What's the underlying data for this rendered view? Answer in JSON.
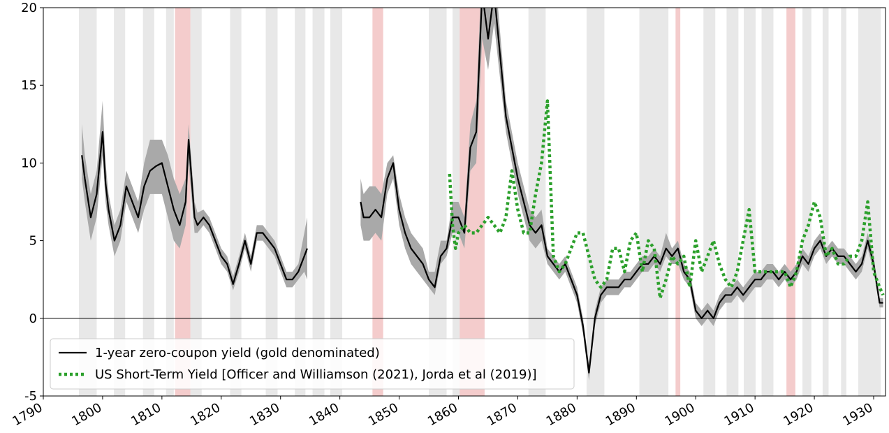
{
  "chart_data": {
    "type": "line",
    "xlim": [
      1790,
      1932
    ],
    "xticks": [
      1790,
      1800,
      1810,
      1820,
      1830,
      1840,
      1850,
      1860,
      1870,
      1880,
      1890,
      1900,
      1910,
      1920,
      1930
    ],
    "ylim": [
      -5,
      20
    ],
    "yticks": [
      -5,
      0,
      5,
      10,
      15,
      20
    ],
    "zero_line": true,
    "legend": "lower left",
    "band_color": "#a9a9a9",
    "recession_color": "#e8e8e8",
    "war_color": "#f4cccc",
    "recession_spans": [
      [
        1796,
        1799
      ],
      [
        1801.9,
        1803.8
      ],
      [
        1806.8,
        1808.7
      ],
      [
        1810.7,
        1812
      ],
      [
        1814.8,
        1816.7
      ],
      [
        1821.5,
        1823.4
      ],
      [
        1827.5,
        1829.5
      ],
      [
        1832.4,
        1834.2
      ],
      [
        1835.4,
        1837.4
      ],
      [
        1838.4,
        1840.4
      ],
      [
        1855,
        1858
      ],
      [
        1859,
        1860.4
      ],
      [
        1863.3,
        1864.4
      ],
      [
        1871.8,
        1874.7
      ],
      [
        1881.6,
        1884.6
      ],
      [
        1890.5,
        1895.4
      ],
      [
        1901.3,
        1903.3
      ],
      [
        1905.2,
        1907.2
      ],
      [
        1908.1,
        1910.1
      ],
      [
        1911.1,
        1913.1
      ],
      [
        1918,
        1919.5
      ],
      [
        1921.4,
        1922.4
      ],
      [
        1924.5,
        1925.4
      ],
      [
        1927.4,
        1931.2
      ]
    ],
    "war_spans": [
      [
        1812.2,
        1814.8
      ],
      [
        1845.5,
        1847.3
      ],
      [
        1860.2,
        1864.4
      ],
      [
        1896.6,
        1897.4
      ],
      [
        1915.3,
        1916.8
      ]
    ],
    "series": [
      {
        "name": "1-year zero-coupon yield (gold denominated)",
        "color": "#000000",
        "style": "solid",
        "x": [
          1796.5,
          1797,
          1798,
          1799,
          1800,
          1800.5,
          1801,
          1802,
          1803,
          1804,
          1805,
          1806,
          1807,
          1808,
          1809,
          1810,
          1811,
          1812,
          1813,
          1814,
          1814.5,
          1815.5,
          1816,
          1817,
          1818,
          1819,
          1820,
          1821,
          1822,
          1823,
          1824,
          1825,
          1826,
          1827,
          1828,
          1829,
          1830,
          1831,
          1832,
          1833,
          1834,
          1834.5,
          1839,
          1843.5,
          1844,
          1845,
          1846,
          1847,
          1848,
          1849,
          1850,
          1851,
          1852,
          1853,
          1854,
          1855,
          1856,
          1857,
          1858,
          1859,
          1860,
          1861,
          1862,
          1863,
          1864,
          1865,
          1866,
          1867,
          1868,
          1869,
          1870,
          1871,
          1872,
          1873,
          1874,
          1875,
          1876,
          1877,
          1878,
          1879,
          1880,
          1881,
          1882,
          1883,
          1884,
          1885,
          1886,
          1887,
          1888,
          1889,
          1890,
          1891,
          1892,
          1893,
          1894,
          1895,
          1896,
          1897,
          1898,
          1899,
          1900,
          1901,
          1902,
          1903,
          1904,
          1905,
          1906,
          1907,
          1908,
          1909,
          1910,
          1911,
          1912,
          1913,
          1914,
          1915,
          1916,
          1917,
          1918,
          1919,
          1920,
          1921,
          1922,
          1923,
          1924,
          1925,
          1926,
          1927,
          1928,
          1929,
          1930,
          1931,
          1931.6
        ],
        "values": [
          10.5,
          9,
          6.5,
          8,
          12,
          8.7,
          7,
          5,
          6,
          8.5,
          7.5,
          6.5,
          8.5,
          9.5,
          9.8,
          10,
          8.5,
          7,
          6,
          7.5,
          11.5,
          6.5,
          6,
          6.5,
          6,
          5,
          4,
          3.5,
          2.2,
          3.5,
          5,
          3.5,
          5.5,
          5.5,
          5,
          4.5,
          3.5,
          2.5,
          2.5,
          3,
          4,
          4.5,
          null,
          7.5,
          6.5,
          6.5,
          7,
          6.5,
          9,
          10,
          7,
          5.5,
          4.5,
          4,
          3.5,
          2.5,
          2,
          4,
          4.5,
          6.5,
          6.5,
          5.5,
          11,
          12,
          21,
          18,
          21,
          17,
          13,
          11,
          9,
          7.5,
          6,
          5.5,
          6,
          4,
          3.5,
          3,
          3.5,
          2.5,
          1.5,
          -0.5,
          -3.5,
          0,
          1.5,
          2,
          2,
          2,
          2.5,
          2.5,
          3,
          3.5,
          3.5,
          4,
          3.5,
          4.5,
          4,
          4.5,
          3,
          2.5,
          0.5,
          0,
          0.5,
          0,
          1,
          1.5,
          1.5,
          2,
          1.5,
          2,
          2.5,
          2.5,
          3,
          3,
          2.5,
          3,
          2.5,
          3,
          4,
          3.5,
          4.5,
          5,
          4,
          4.5,
          4,
          4,
          3.5,
          3,
          3.5,
          5,
          3.5,
          1,
          1
        ],
        "lower": [
          9,
          7.5,
          5,
          6.5,
          10.5,
          7.5,
          6,
          4,
          5,
          7.5,
          6.5,
          5.5,
          7,
          8,
          8,
          8,
          6.5,
          5,
          4.5,
          6,
          10,
          5.5,
          5.5,
          6,
          5.5,
          4.5,
          3.5,
          3,
          1.8,
          3,
          4.5,
          3,
          5,
          5,
          4.5,
          4,
          3,
          2,
          2,
          2.5,
          3,
          2.5,
          null,
          6,
          5,
          5,
          5.5,
          5,
          8,
          9,
          6,
          4.5,
          3.5,
          3,
          2.5,
          2,
          1.5,
          3.5,
          4,
          5.5,
          5.5,
          4.5,
          9.5,
          10,
          18,
          16,
          19,
          15.5,
          12,
          10,
          8,
          6.5,
          5,
          4.5,
          5,
          3.5,
          3,
          2.5,
          3,
          2,
          1,
          -1,
          -4,
          -0.5,
          1,
          1.5,
          1.5,
          1.5,
          2,
          2,
          2.5,
          3,
          3,
          3.5,
          3,
          4,
          3.5,
          3.5,
          2.5,
          2,
          0,
          -0.5,
          0,
          -0.5,
          0.5,
          1,
          1,
          1.5,
          1,
          1.5,
          2,
          2,
          2.5,
          2.5,
          2,
          2.5,
          2,
          2.5,
          3.5,
          3,
          4,
          4.5,
          3.5,
          4,
          3.5,
          3.5,
          3,
          2.5,
          3,
          4.5,
          3,
          0.7,
          0.7
        ],
        "upper": [
          12.5,
          10.5,
          8,
          9.5,
          14,
          10,
          8,
          6,
          7,
          9.5,
          8.5,
          7.5,
          10,
          11.5,
          11.5,
          11.5,
          10.5,
          9,
          8,
          9,
          12.5,
          7.5,
          6.8,
          7,
          6.5,
          5.5,
          4.5,
          4,
          2.7,
          4,
          5.5,
          4,
          6,
          6,
          5.5,
          5,
          4,
          3,
          3,
          3.5,
          5.5,
          6.5,
          null,
          9,
          8,
          8.5,
          8.5,
          8,
          10,
          10.5,
          8,
          6.5,
          5.5,
          5,
          4.5,
          3,
          3,
          5,
          5,
          7.5,
          7.5,
          6.5,
          12.5,
          14,
          23,
          20.5,
          23,
          18.5,
          14,
          12,
          10,
          8.5,
          7,
          6.5,
          7,
          4.5,
          4,
          3.5,
          4,
          3,
          2,
          0,
          -3,
          0.5,
          2,
          2.5,
          2.5,
          2.5,
          3,
          3,
          3.5,
          4,
          4,
          4.5,
          4,
          5.5,
          4.5,
          5,
          3.5,
          3,
          1,
          0.5,
          1,
          0.5,
          1.5,
          2,
          2,
          2.5,
          2,
          2.5,
          3,
          3,
          3.5,
          3.5,
          3,
          3.5,
          3,
          3.5,
          4.5,
          4,
          5,
          5.5,
          4.5,
          5,
          4.5,
          4.5,
          4,
          3.5,
          4,
          5.5,
          4,
          1.3,
          1.3
        ]
      },
      {
        "name": "US Short-Term Yield [Officer and Williamson (2021), Jorda et al (2019)]",
        "color": "#2ca02c",
        "style": "dotted",
        "x": [
          1858.5,
          1859,
          1859.5,
          1860,
          1861,
          1862,
          1863,
          1864,
          1865,
          1866,
          1867,
          1868,
          1869,
          1870,
          1871,
          1872,
          1873,
          1874,
          1875,
          1876,
          1877,
          1878,
          1879,
          1880,
          1881,
          1882,
          1883,
          1884,
          1885,
          1886,
          1887,
          1888,
          1889,
          1890,
          1891,
          1892,
          1893,
          1894,
          1895,
          1896,
          1897,
          1898,
          1899,
          1900,
          1901,
          1902,
          1903,
          1904,
          1905,
          1906,
          1907,
          1908,
          1909,
          1910,
          1911,
          1912,
          1913,
          1914,
          1915,
          1916,
          1917,
          1918,
          1919,
          1920,
          1921,
          1922,
          1923,
          1924,
          1925,
          1926,
          1927,
          1928,
          1929,
          1930,
          1931,
          1931.6
        ],
        "values": [
          9.3,
          6,
          4.5,
          5.5,
          6,
          5.5,
          5.5,
          6,
          6.5,
          6,
          5.5,
          6.5,
          9.5,
          7,
          5.5,
          5.5,
          8,
          10,
          14,
          4,
          3,
          3.5,
          4.5,
          5.5,
          5.5,
          4,
          2.5,
          2,
          2.5,
          4.5,
          4.5,
          3,
          5,
          5.5,
          3,
          5,
          4.5,
          1.3,
          2.5,
          4,
          3.5,
          4,
          2,
          5,
          3,
          4,
          5,
          3.5,
          2.5,
          2,
          3,
          5,
          7,
          3,
          3,
          3,
          3,
          3,
          3,
          2,
          3,
          5,
          6,
          7.5,
          6.5,
          4,
          4.5,
          3.5,
          3.5,
          4,
          4,
          5,
          7.5,
          3,
          2,
          1.5
        ]
      }
    ]
  }
}
